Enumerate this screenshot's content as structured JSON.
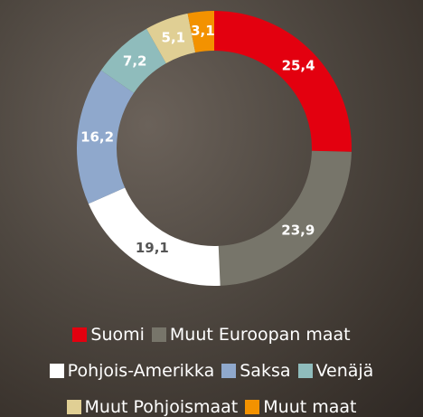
{
  "chart_data": {
    "type": "donut",
    "categories": [
      "Suomi",
      "Muut Euroopan maat",
      "Pohjois-Amerikka",
      "Saksa",
      "Venäjä",
      "Muut Pohjoismaat",
      "Muut maat"
    ],
    "values": [
      25.4,
      23.9,
      19.1,
      16.2,
      7.2,
      5.1,
      3.1
    ],
    "value_labels": [
      "25,4",
      "23,9",
      "19,1",
      "16,2",
      "7,2",
      "5,1",
      "3,1"
    ],
    "colors": [
      "#e3000f",
      "#77756a",
      "#ffffff",
      "#8fa8cc",
      "#8fbcbc",
      "#e0cf94",
      "#f39200"
    ]
  }
}
